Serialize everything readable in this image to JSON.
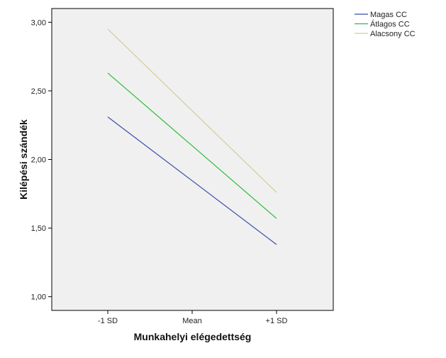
{
  "chart_data": {
    "type": "line",
    "title": "",
    "xlabel": "Munkahelyi elégedettség",
    "ylabel": "Kilépési szándék",
    "categories": [
      "-1 SD",
      "Mean",
      "+1 SD"
    ],
    "ylim": [
      0.9,
      3.1
    ],
    "yticks": [
      1.0,
      1.5,
      2.0,
      2.5,
      3.0
    ],
    "ytick_labels": [
      "1,00",
      "1,50",
      "2,00",
      "2,50",
      "3,00"
    ],
    "grid": false,
    "legend_position": "top-right outside",
    "background_color": "#f0f0f0",
    "series": [
      {
        "name": "Magas CC",
        "color": "#3b4fa8",
        "values": [
          2.31,
          1.845,
          1.38
        ]
      },
      {
        "name": "Átlagos CC",
        "color": "#2ebd3a",
        "values": [
          2.63,
          2.1,
          1.57
        ]
      },
      {
        "name": "Alacsony CC",
        "color": "#d2cd9a",
        "values": [
          2.95,
          2.355,
          1.76
        ]
      }
    ]
  }
}
